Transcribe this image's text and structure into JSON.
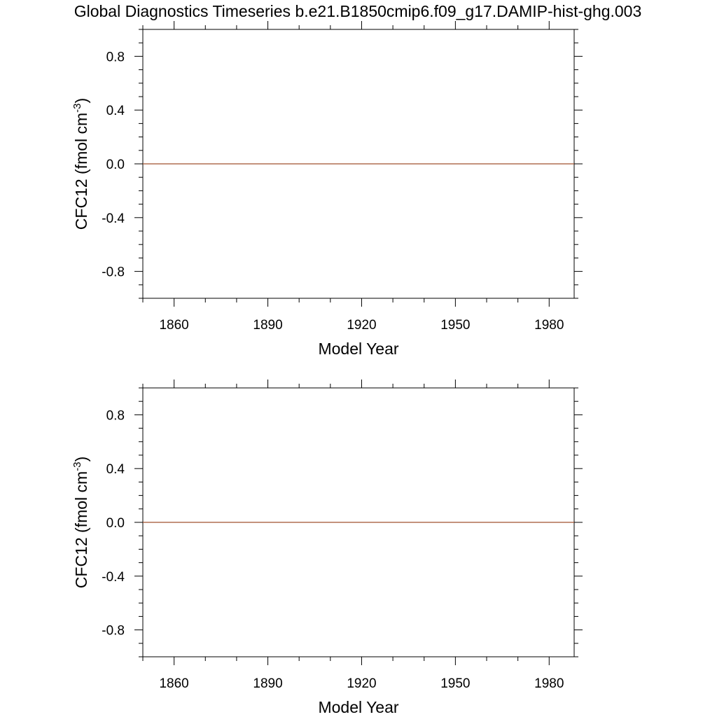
{
  "title": "Global Diagnostics Timeseries b.e21.B1850cmip6.f09_g17.DAMIP-hist-ghg.003",
  "line_color": "#a0522d",
  "chart_data": [
    {
      "type": "line",
      "xlabel": "Model Year",
      "ylabel_main": "CFC12 (fmol cm",
      "ylabel_sup": "-3",
      "ylabel_close": ")",
      "xlim": [
        1850,
        1988
      ],
      "ylim": [
        -1.0,
        1.0
      ],
      "x_major_ticks": [
        1860,
        1890,
        1920,
        1950,
        1980
      ],
      "x_tick_labels": [
        "1860",
        "1890",
        "1920",
        "1950",
        "1980"
      ],
      "y_major_ticks": [
        -0.8,
        -0.4,
        0.0,
        0.4,
        0.8
      ],
      "y_tick_labels": [
        "-0.8",
        "-0.4",
        "0.0",
        "0.4",
        "0.8"
      ],
      "grid": false,
      "series": [
        {
          "x": [
            1850,
            1988
          ],
          "values": [
            0.0,
            0.0
          ]
        }
      ]
    },
    {
      "type": "line",
      "xlabel": "Model Year",
      "ylabel_main": "CFC12 (fmol cm",
      "ylabel_sup": "-3",
      "ylabel_close": ")",
      "xlim": [
        1850,
        1988
      ],
      "ylim": [
        -1.0,
        1.0
      ],
      "x_major_ticks": [
        1860,
        1890,
        1920,
        1950,
        1980
      ],
      "x_tick_labels": [
        "1860",
        "1890",
        "1920",
        "1950",
        "1980"
      ],
      "y_major_ticks": [
        -0.8,
        -0.4,
        0.0,
        0.4,
        0.8
      ],
      "y_tick_labels": [
        "-0.8",
        "-0.4",
        "0.0",
        "0.4",
        "0.8"
      ],
      "grid": false,
      "series": [
        {
          "x": [
            1850,
            1988
          ],
          "values": [
            0.0,
            0.0
          ]
        }
      ]
    }
  ]
}
